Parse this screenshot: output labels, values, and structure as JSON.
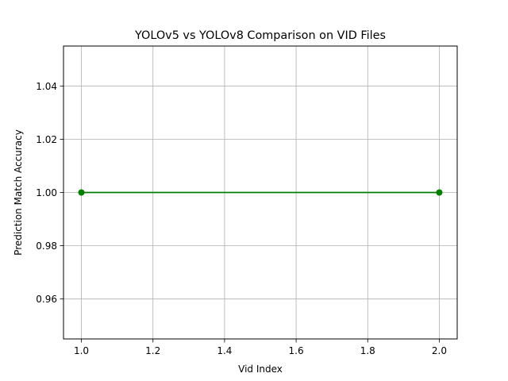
{
  "chart_data": {
    "type": "line",
    "title": "YOLOv5 vs YOLOv8 Comparison on VID Files",
    "xlabel": "Vid Index",
    "ylabel": "Prediction Match Accuracy",
    "xlim": [
      0.95,
      2.05
    ],
    "ylim": [
      0.945,
      1.055
    ],
    "xticks": [
      1.0,
      1.2,
      1.4,
      1.6,
      1.8,
      2.0
    ],
    "xtick_labels": [
      "1.0",
      "1.2",
      "1.4",
      "1.6",
      "1.8",
      "2.0"
    ],
    "yticks": [
      0.96,
      0.98,
      1.0,
      1.02,
      1.04
    ],
    "ytick_labels": [
      "0.96",
      "0.98",
      "1.00",
      "1.02",
      "1.04"
    ],
    "grid": true,
    "legend": false,
    "series": [
      {
        "color": "#008000",
        "marker": "circle",
        "x": [
          1,
          2
        ],
        "y": [
          1.0,
          1.0
        ]
      }
    ]
  }
}
